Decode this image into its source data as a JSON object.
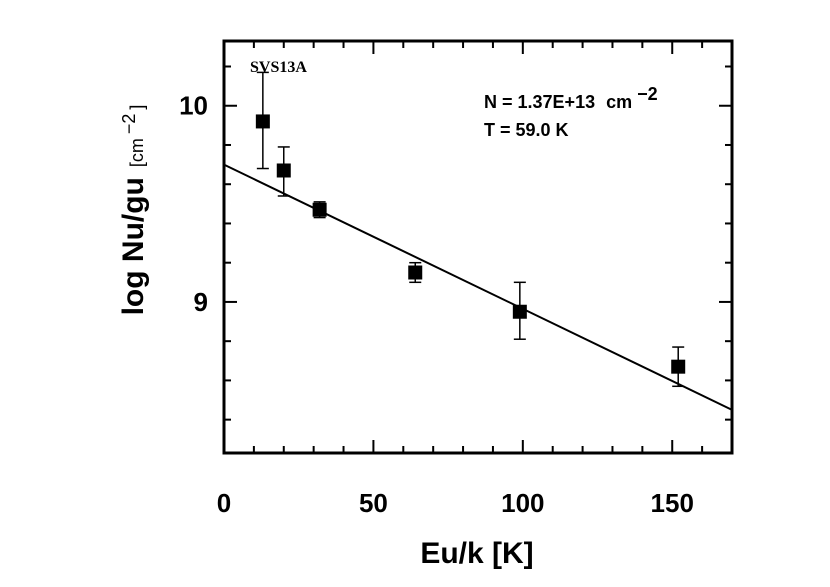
{
  "chart_data": {
    "type": "scatter",
    "title": "",
    "xlabel": "Eu/k [K]",
    "ylabel": "log Nu/gu",
    "ylabel_unit": "[cm",
    "ylabel_unit_exp": "−2",
    "ylabel_unit_close": "]",
    "xlim": [
      0,
      170
    ],
    "ylim": [
      8.23,
      10.33
    ],
    "x_ticks": [
      0,
      50,
      100,
      150
    ],
    "x_tick_labels": [
      "0",
      "50",
      "100",
      "150"
    ],
    "y_ticks": [
      9,
      10
    ],
    "y_tick_labels": [
      "9",
      "10"
    ],
    "x_minor_step": 10,
    "y_minor_step": 0.2,
    "grid": false,
    "series": [
      {
        "type": "scatter",
        "marker": "square",
        "points": [
          {
            "x": 13,
            "y": 9.92,
            "err_low": 0.24,
            "err_high": 0.25
          },
          {
            "x": 20,
            "y": 9.67,
            "err_low": 0.13,
            "err_high": 0.12
          },
          {
            "x": 32,
            "y": 9.47,
            "err_low": 0.04,
            "err_high": 0.04
          },
          {
            "x": 64,
            "y": 9.15,
            "err_low": 0.05,
            "err_high": 0.05
          },
          {
            "x": 99,
            "y": 8.95,
            "err_low": 0.14,
            "err_high": 0.15
          },
          {
            "x": 152,
            "y": 8.67,
            "err_low": 0.1,
            "err_high": 0.1
          }
        ]
      },
      {
        "type": "line",
        "points": [
          {
            "x": 0,
            "y": 9.7
          },
          {
            "x": 170,
            "y": 8.45
          }
        ]
      }
    ],
    "annotations": {
      "source": "SVS13A",
      "column_density_prefix": "N = 1.37E+13",
      "column_density_unit": "cm",
      "column_density_exp": "−2",
      "temperature": "T = 59.0 K"
    }
  }
}
